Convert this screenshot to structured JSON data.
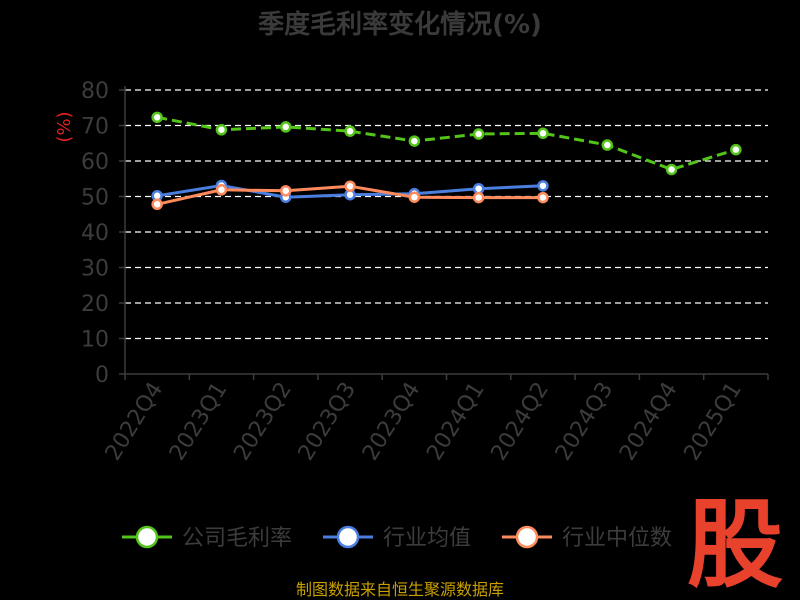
{
  "source_text": "制图数据来自恒生聚源数据库",
  "watermark_text": "股",
  "colors": {
    "company": "#52c41a",
    "industry_avg": "#4a7fe0",
    "industry_median": "#ff8a5c",
    "grid": "#ffffff",
    "axis": "#3c3c3c",
    "ylabel": "#e02020"
  },
  "chart_data": {
    "type": "line",
    "title": "季度毛利率变化情况(%)",
    "ylabel": "(%)",
    "xlabel": "",
    "ylim": [
      0,
      80
    ],
    "yticks": [
      0,
      10,
      20,
      30,
      40,
      50,
      60,
      70,
      80
    ],
    "grid": true,
    "legend_position": "bottom",
    "categories": [
      "2022Q4",
      "2023Q1",
      "2023Q2",
      "2023Q3",
      "2023Q4",
      "2024Q1",
      "2024Q2",
      "2024Q3",
      "2024Q4",
      "2025Q1"
    ],
    "series": [
      {
        "name": "公司毛利率",
        "color": "#52c41a",
        "dashed": true,
        "values": [
          72.3,
          68.8,
          69.6,
          68.4,
          65.6,
          67.6,
          67.8,
          64.5,
          57.6,
          63.2
        ]
      },
      {
        "name": "行业均值",
        "color": "#4a7fe0",
        "dashed": false,
        "values": [
          50.2,
          53.1,
          49.8,
          50.5,
          50.8,
          52.2,
          53.0,
          null,
          null,
          null
        ]
      },
      {
        "name": "行业中位数",
        "color": "#ff8a5c",
        "dashed": false,
        "values": [
          47.8,
          51.9,
          51.6,
          52.9,
          49.8,
          49.7,
          49.7,
          null,
          null,
          null
        ]
      }
    ]
  }
}
